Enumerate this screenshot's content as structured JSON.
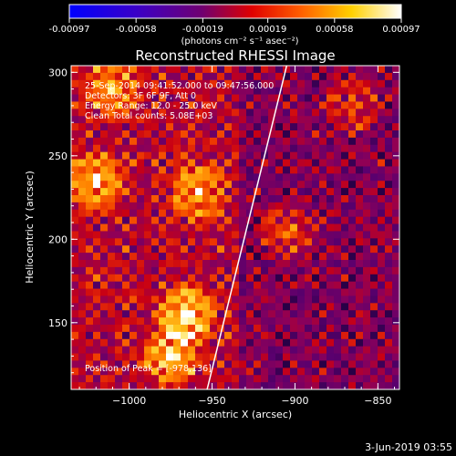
{
  "colorbar": {
    "ticks": [
      "-0.00097",
      "-0.00058",
      "-0.00019",
      "0.00019",
      "0.00058",
      "0.00097"
    ],
    "tick_values": [
      -0.00097,
      -0.00058,
      -0.00019,
      0.00019,
      0.00058,
      0.00097
    ],
    "range": [
      -0.00097,
      0.00097
    ],
    "units": "(photons cm⁻² s⁻¹ asec⁻²)",
    "colormap": "blue-purple-red-orange-yellow-white"
  },
  "chart_data": {
    "type": "heatmap",
    "title": "Reconstructed RHESSI Image",
    "xlabel": "Heliocentric X (arcsec)",
    "ylabel": "Heliocentric Y (arcsec)",
    "xlim": [
      -1035,
      -837
    ],
    "ylim": [
      110,
      304
    ],
    "xticks": [
      -1000,
      -950,
      -900,
      -850
    ],
    "yticks": [
      150,
      200,
      250,
      300
    ],
    "xtick_labels": [
      "−1000",
      "−950",
      "−900",
      "−850"
    ],
    "ytick_labels": [
      "150",
      "200",
      "250",
      "300"
    ],
    "limb_line": [
      [
        -953,
        110
      ],
      [
        -905,
        304
      ]
    ],
    "sources": [
      {
        "x": -1020,
        "y": 235,
        "level": 0.75
      },
      {
        "x": -965,
        "y": 155,
        "level": 0.95
      },
      {
        "x": -975,
        "y": 130,
        "level": 0.8
      },
      {
        "x": -958,
        "y": 228,
        "level": 0.7
      },
      {
        "x": -905,
        "y": 205,
        "level": 0.55
      },
      {
        "x": -865,
        "y": 280,
        "level": 0.5
      },
      {
        "x": -1010,
        "y": 290,
        "level": 0.6
      }
    ],
    "peak": [
      -978,
      136
    ]
  },
  "annotations": {
    "time_range": "25-Sep-2014 09:41:52.000 to 09:47:56.000",
    "detectors": "Detectors: 3F 6F 9F, Att 0",
    "energy": "Energy Range: 12.0 - 25.0 keV",
    "clean": "Clean     Total counts: 5.08E+03",
    "peak_position": "Position of Peak = [-978,136]"
  },
  "footer": {
    "date": "3-Jun-2019 03:55"
  }
}
